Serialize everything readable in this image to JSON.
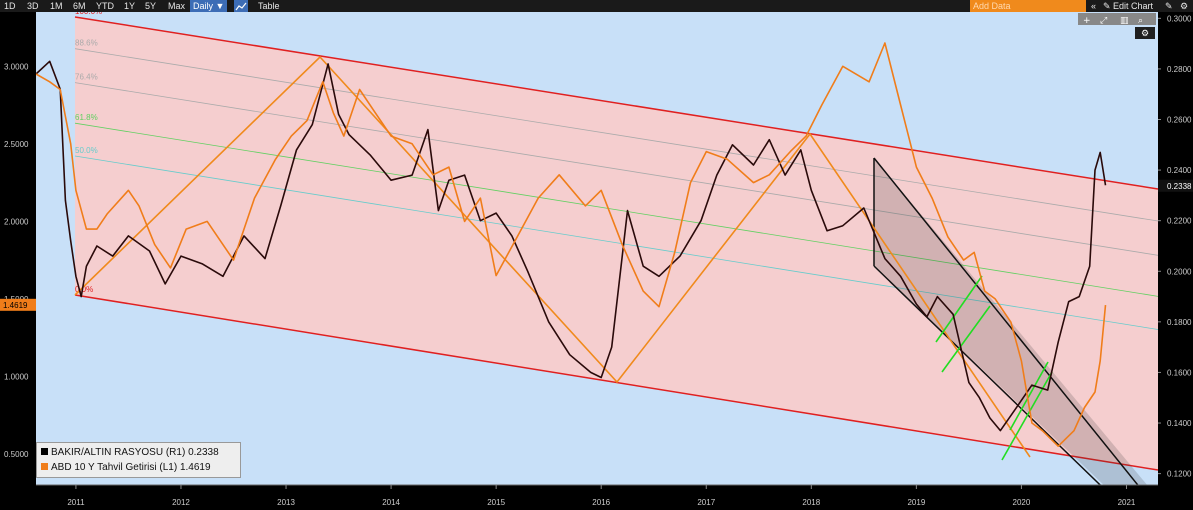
{
  "toolbar": {
    "ranges": [
      "1D",
      "3D",
      "1M",
      "6M",
      "YTD",
      "1Y",
      "5Y",
      "Max"
    ],
    "frequency": "Daily ▼",
    "table_label": "Table",
    "add_data_placeholder": "Add Data",
    "collapse_icon": "«",
    "edit_chart_label": "✎ Edit Chart",
    "settings_icon": "gear-icon"
  },
  "legend": {
    "items": [
      {
        "label": "BAKIR/ALTIN RASYOSU (R1)  0.2338",
        "color": "#000000"
      },
      {
        "label": "ABD 10 Y Tahvil Getirisi (L1) 1.4619",
        "color": "#f07d1a"
      }
    ]
  },
  "chart_data": {
    "type": "line",
    "x_ticks": [
      "2011",
      "2012",
      "2013",
      "2014",
      "2015",
      "2016",
      "2017",
      "2018",
      "2019",
      "2020",
      "2021"
    ],
    "x_range": [
      2010.62,
      2021.3
    ],
    "left_axis": {
      "ticks": [
        "3.0000",
        "2.5000",
        "2.0000",
        "1.5000",
        "1.0000",
        "0.5000"
      ],
      "tick_values": [
        3.0,
        2.5,
        2.0,
        1.5,
        1.0,
        0.5
      ],
      "range": [
        0.3,
        3.35
      ],
      "last_value_label": "1.4619",
      "last_value": 1.4619
    },
    "right_axis": {
      "ticks": [
        "0.3000",
        "0.2800",
        "0.2600",
        "0.2400",
        "0.2200",
        "0.2000",
        "0.1800",
        "0.1600",
        "0.1400",
        "0.1200"
      ],
      "tick_values": [
        0.3,
        0.28,
        0.26,
        0.24,
        0.22,
        0.2,
        0.18,
        0.16,
        0.14,
        0.12
      ],
      "range": [
        0.1155,
        0.3025
      ],
      "last_value_label": "0.2338",
      "last_value": 0.2338
    },
    "fib_levels": [
      {
        "label": "100.0%",
        "color": "#e02020"
      },
      {
        "label": "88.6%",
        "color": "#aaaaaa"
      },
      {
        "label": "76.4%",
        "color": "#aaaaaa"
      },
      {
        "label": "61.8%",
        "color": "#60d060"
      },
      {
        "label": "50.0%",
        "color": "#66cccc"
      },
      {
        "label": "0.0%",
        "color": "#e02020"
      }
    ],
    "series": [
      {
        "name": "BAKIR/ALTIN RASYOSU (R1)",
        "axis": "right",
        "color": "#2a0a0a",
        "x": [
          2010.62,
          2010.75,
          2010.85,
          2010.9,
          2010.95,
          2011.0,
          2011.05,
          2011.1,
          2011.2,
          2011.35,
          2011.5,
          2011.7,
          2011.85,
          2012.0,
          2012.2,
          2012.4,
          2012.6,
          2012.8,
          2012.95,
          2013.1,
          2013.25,
          2013.4,
          2013.5,
          2013.6,
          2013.8,
          2014.0,
          2014.2,
          2014.35,
          2014.45,
          2014.55,
          2014.7,
          2014.85,
          2015.0,
          2015.15,
          2015.3,
          2015.5,
          2015.7,
          2015.9,
          2016.0,
          2016.1,
          2016.25,
          2016.4,
          2016.55,
          2016.75,
          2016.95,
          2017.1,
          2017.25,
          2017.45,
          2017.6,
          2017.75,
          2017.9,
          2018.0,
          2018.15,
          2018.3,
          2018.5,
          2018.7,
          2018.85,
          2019.0,
          2019.1,
          2019.2,
          2019.35,
          2019.5,
          2019.6,
          2019.7,
          2019.8,
          2019.95,
          2020.1,
          2020.25,
          2020.35,
          2020.45,
          2020.55,
          2020.65,
          2020.7,
          2020.75,
          2020.8
        ],
        "y": [
          0.278,
          0.283,
          0.272,
          0.228,
          0.212,
          0.198,
          0.19,
          0.202,
          0.21,
          0.206,
          0.214,
          0.208,
          0.195,
          0.206,
          0.203,
          0.198,
          0.214,
          0.205,
          0.226,
          0.248,
          0.258,
          0.282,
          0.262,
          0.254,
          0.246,
          0.236,
          0.238,
          0.256,
          0.224,
          0.236,
          0.238,
          0.22,
          0.223,
          0.214,
          0.2,
          0.18,
          0.167,
          0.16,
          0.158,
          0.17,
          0.224,
          0.202,
          0.198,
          0.206,
          0.22,
          0.238,
          0.25,
          0.242,
          0.252,
          0.238,
          0.248,
          0.232,
          0.216,
          0.218,
          0.225,
          0.205,
          0.198,
          0.187,
          0.182,
          0.19,
          0.183,
          0.156,
          0.15,
          0.142,
          0.137,
          0.146,
          0.155,
          0.153,
          0.172,
          0.188,
          0.19,
          0.202,
          0.24,
          0.247,
          0.234
        ]
      },
      {
        "name": "ABD 10 Y Tahvil Getirisi (L1)",
        "axis": "left",
        "color": "#f07d1a",
        "x": [
          2010.62,
          2010.75,
          2010.85,
          2010.95,
          2011.0,
          2011.1,
          2011.2,
          2011.3,
          2011.5,
          2011.6,
          2011.75,
          2011.9,
          2012.05,
          2012.25,
          2012.5,
          2012.7,
          2012.9,
          2013.05,
          2013.2,
          2013.35,
          2013.45,
          2013.55,
          2013.7,
          2013.85,
          2014.0,
          2014.2,
          2014.4,
          2014.55,
          2014.7,
          2014.85,
          2015.0,
          2015.2,
          2015.4,
          2015.6,
          2015.85,
          2016.0,
          2016.2,
          2016.4,
          2016.55,
          2016.7,
          2016.85,
          2017.0,
          2017.2,
          2017.45,
          2017.6,
          2017.8,
          2017.95,
          2018.1,
          2018.3,
          2018.55,
          2018.7,
          2018.85,
          2019.0,
          2019.15,
          2019.3,
          2019.45,
          2019.55,
          2019.65,
          2019.75,
          2019.9,
          2020.0,
          2020.1,
          2020.2,
          2020.35,
          2020.5,
          2020.6,
          2020.7,
          2020.75,
          2020.8
        ],
        "y": [
          2.95,
          2.9,
          2.85,
          2.5,
          2.2,
          1.95,
          1.95,
          2.05,
          2.2,
          2.1,
          1.85,
          1.7,
          1.95,
          2.0,
          1.75,
          2.15,
          2.4,
          2.55,
          2.65,
          2.9,
          2.7,
          2.55,
          2.85,
          2.7,
          2.55,
          2.5,
          2.3,
          2.35,
          2.0,
          2.15,
          1.65,
          1.9,
          2.15,
          2.3,
          2.1,
          2.2,
          1.85,
          1.55,
          1.45,
          1.8,
          2.25,
          2.45,
          2.4,
          2.25,
          2.3,
          2.45,
          2.55,
          2.75,
          3.0,
          2.9,
          3.15,
          2.75,
          2.35,
          2.15,
          1.9,
          1.75,
          1.8,
          1.55,
          1.5,
          1.35,
          1.1,
          0.7,
          0.65,
          0.55,
          0.65,
          0.8,
          0.9,
          1.1,
          1.46
        ]
      }
    ]
  }
}
